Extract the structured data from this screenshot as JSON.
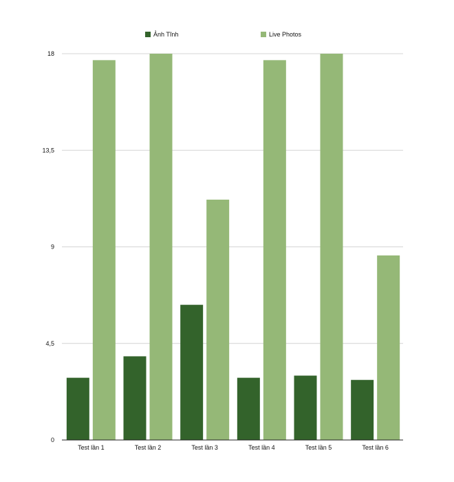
{
  "chart_data": {
    "type": "bar",
    "categories": [
      "Test lần 1",
      "Test lần 2",
      "Test lần 3",
      "Test lần 4",
      "Test lần 5",
      "Test lần 6"
    ],
    "series": [
      {
        "name": "Ảnh Tĩnh",
        "color": "#33632b",
        "values": [
          2.9,
          3.9,
          6.3,
          2.9,
          3.0,
          2.8
        ]
      },
      {
        "name": "Live Photos",
        "color": "#95b877",
        "values": [
          17.7,
          18.0,
          11.2,
          17.7,
          18.0,
          8.6
        ]
      }
    ],
    "yticks": [
      "0",
      "4,5",
      "9",
      "13,5",
      "18"
    ],
    "ylim": [
      0,
      18
    ],
    "grid": true,
    "legend_position": "top"
  }
}
